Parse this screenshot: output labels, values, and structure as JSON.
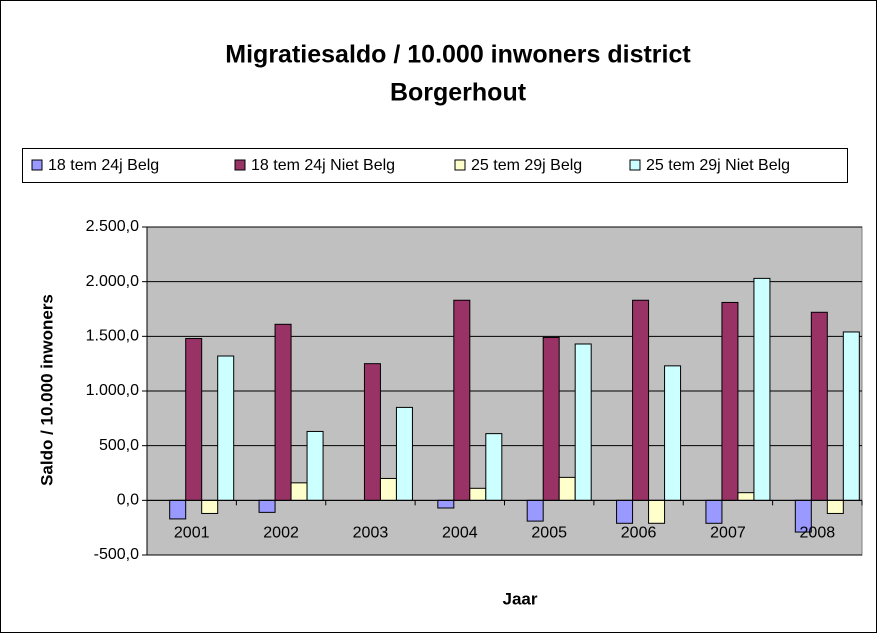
{
  "chart_data": {
    "type": "bar",
    "title": [
      "Migratiesaldo / 10.000 inwoners district",
      "Borgerhout"
    ],
    "x_label": "Jaar",
    "y_label": "Saldo / 10.000 inwoners",
    "categories": [
      "2001",
      "2002",
      "2003",
      "2004",
      "2005",
      "2006",
      "2007",
      "2008"
    ],
    "series": [
      {
        "name": "18 tem 24j Belg",
        "color": "#9999ff",
        "values": [
          -170,
          -110,
          0,
          -70,
          -190,
          -210,
          -210,
          -290
        ]
      },
      {
        "name": "18 tem 24j Niet Belg",
        "color": "#993366",
        "values": [
          1480,
          1610,
          1250,
          1830,
          1490,
          1830,
          1810,
          1720
        ]
      },
      {
        "name": "25 tem 29j Belg",
        "color": "#ffffcc",
        "values": [
          -120,
          160,
          200,
          110,
          210,
          -210,
          70,
          -120
        ]
      },
      {
        "name": "25 tem 29j Niet Belg",
        "color": "#ccffff",
        "values": [
          1320,
          630,
          850,
          610,
          1430,
          1230,
          2030,
          1540
        ]
      }
    ],
    "ylim": [
      -500,
      2500
    ],
    "yticks": [
      {
        "value": -500,
        "label": "-500,0"
      },
      {
        "value": 0,
        "label": "0,0"
      },
      {
        "value": 500,
        "label": "500,0"
      },
      {
        "value": 1000,
        "label": "1.000,0"
      },
      {
        "value": 1500,
        "label": "1.500,0"
      },
      {
        "value": 2000,
        "label": "2.000,0"
      },
      {
        "value": 2500,
        "label": "2.500,0"
      }
    ],
    "grid": true,
    "legend": "top"
  }
}
